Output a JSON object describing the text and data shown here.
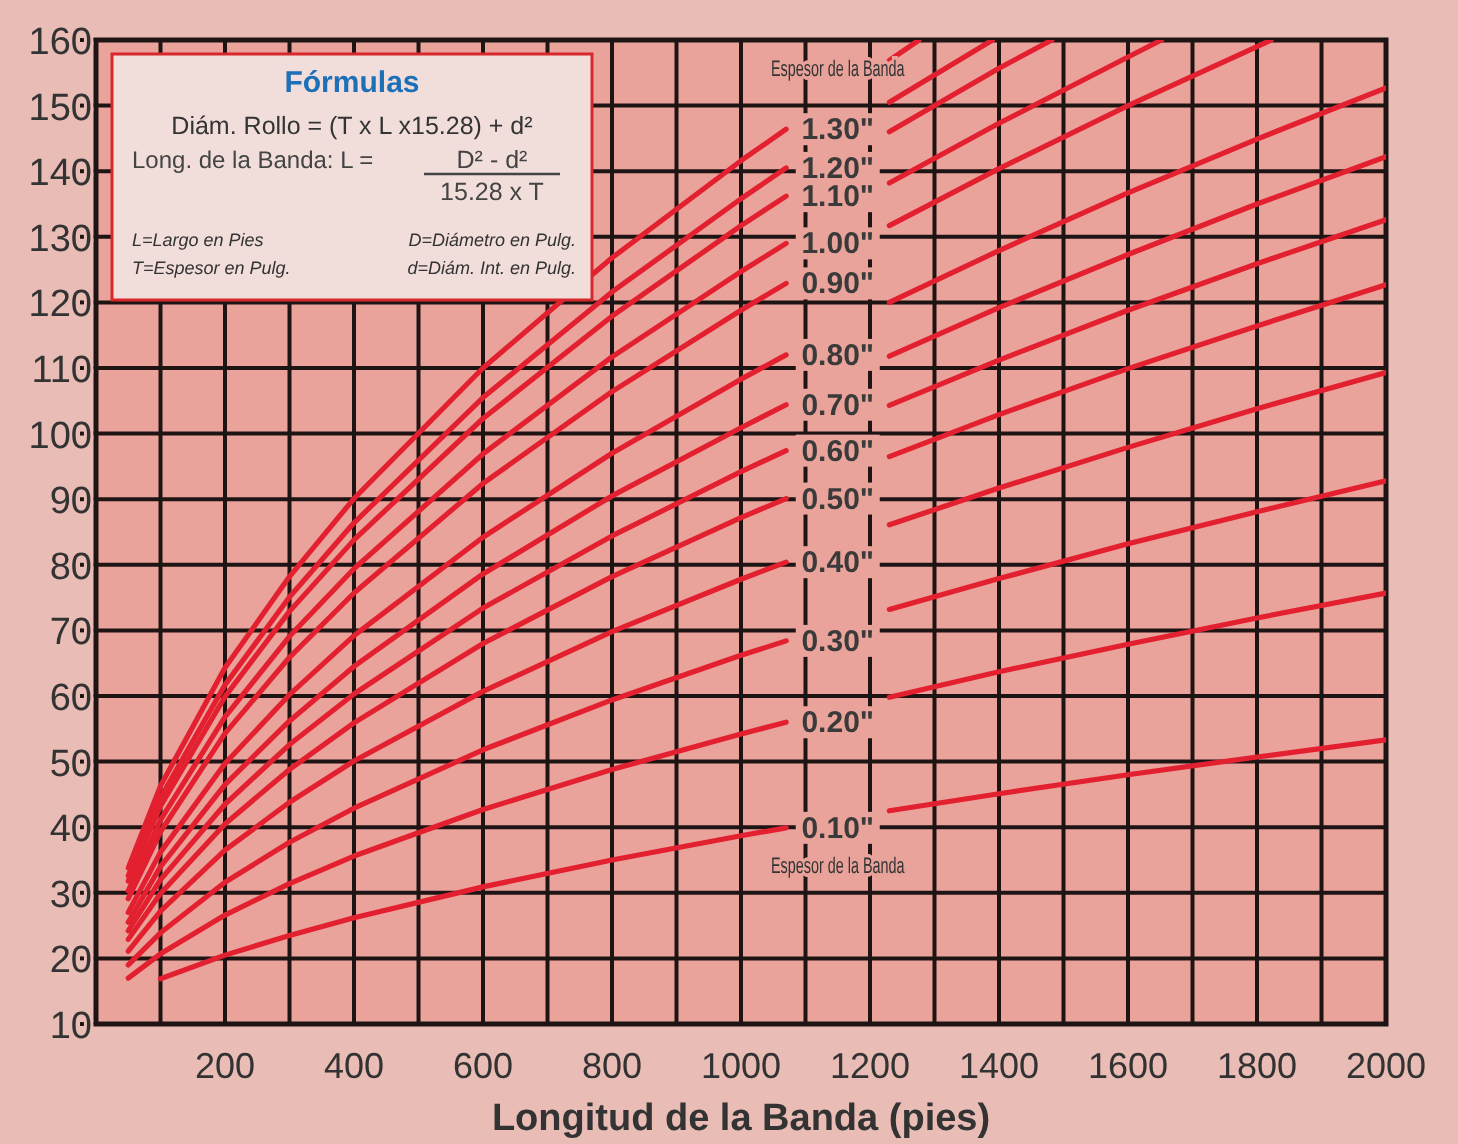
{
  "chart_data": {
    "type": "line",
    "xlabel": "Longitud de la Banda (pies)",
    "xlim": [
      0,
      2000
    ],
    "xticks": [
      {
        "value": 100,
        "label": null
      },
      200,
      {
        "value": 300,
        "label": null
      },
      400,
      {
        "value": 500,
        "label": null
      },
      600,
      {
        "value": 700,
        "label": null
      },
      800,
      {
        "value": 900,
        "label": null
      },
      1000,
      {
        "value": 1100,
        "label": null
      },
      1200,
      {
        "value": 1300,
        "label": null
      },
      1400,
      {
        "value": 1500,
        "label": null
      },
      1600,
      {
        "value": 1700,
        "label": null
      },
      1800,
      {
        "value": 1900,
        "label": null
      },
      2000
    ],
    "ylim": [
      10,
      160
    ],
    "yticks": [
      10,
      20,
      30,
      40,
      50,
      60,
      70,
      80,
      90,
      100,
      110,
      120,
      130,
      140,
      150,
      160
    ],
    "grid": true,
    "legend": false,
    "line_style": "solid",
    "marker": "none",
    "annotations": [
      "Fórmulas",
      "Diám. Rollo = (T x L x15.28) + d²",
      "Long. de la Banda: L =",
      "D² - d²",
      "15.28 x T",
      "L=Largo en Pies",
      "D=Diámetro en Pulg.",
      "T=Espesor en Pulg.",
      "d=Diám. Int. en Pulg.",
      "Espesor de la Banda",
      "Espesor de la Banda"
    ],
    "series": [
      {
        "name": "0.10\"",
        "color": "#e3202f",
        "x": [
          100,
          200,
          300,
          400,
          600,
          800,
          1000,
          1070,
          1150,
          1230,
          1400,
          1600,
          1800,
          2000
        ],
        "values": [
          16.9,
          20.5,
          23.5,
          26.2,
          30.9,
          35.0,
          38.7,
          39.9,
          null,
          42.5,
          45.1,
          48.0,
          50.7,
          53.3
        ]
      },
      {
        "name": "0.20\"",
        "color": "#e3202f",
        "x": [
          50,
          100,
          200,
          300,
          400,
          600,
          800,
          1000,
          1070,
          1150,
          1230,
          1400,
          1600,
          1800,
          2000
        ],
        "values": [
          17.0,
          20.7,
          26.6,
          31.4,
          35.6,
          42.7,
          48.8,
          54.2,
          56.0,
          null,
          59.8,
          63.7,
          67.9,
          71.9,
          75.7
        ]
      },
      {
        "name": "0.30\"",
        "color": "#e3202f",
        "x": [
          50,
          100,
          200,
          300,
          400,
          600,
          800,
          1000,
          1070,
          1150,
          1230,
          1400,
          1600,
          1800,
          2000
        ],
        "values": [
          19.0,
          23.9,
          31.6,
          37.7,
          42.9,
          51.8,
          59.4,
          66.2,
          68.4,
          null,
          73.2,
          77.9,
          83.2,
          88.1,
          92.8
        ]
      },
      {
        "name": "0.40\"",
        "color": "#e3202f",
        "x": [
          50,
          100,
          200,
          300,
          400,
          600,
          800,
          1000,
          1070,
          1150,
          1230,
          1400,
          1600,
          1800,
          2000
        ],
        "values": [
          21.1,
          27.2,
          36.5,
          43.8,
          50.1,
          60.7,
          69.8,
          77.8,
          80.4,
          null,
          86.1,
          91.7,
          97.9,
          103.8,
          109.3
        ]
      },
      {
        "name": "0.50\"",
        "color": "#e3202f",
        "x": [
          50,
          100,
          200,
          300,
          400,
          600,
          800,
          1000,
          1070,
          1150,
          1230,
          1400,
          1600,
          1800,
          2000
        ],
        "values": [
          22.9,
          29.9,
          40.5,
          48.8,
          55.9,
          68.0,
          78.2,
          87.2,
          90.1,
          null,
          96.5,
          102.9,
          109.9,
          116.4,
          122.7
        ]
      },
      {
        "name": "0.60\"",
        "color": "#e3202f",
        "x": [
          50,
          100,
          200,
          300,
          400,
          600,
          800,
          1000,
          1070,
          1150,
          1230,
          1400,
          1600,
          1800,
          2000
        ],
        "values": [
          24.2,
          32.0,
          43.5,
          52.6,
          60.3,
          73.4,
          84.4,
          94.2,
          97.4,
          null,
          104.3,
          111.2,
          118.8,
          125.9,
          132.6
        ]
      },
      {
        "name": "0.70\"",
        "color": "#e3202f",
        "x": [
          50,
          100,
          200,
          300,
          400,
          600,
          800,
          1000,
          1070,
          1150,
          1230,
          1400,
          1600,
          1800,
          2000
        ],
        "values": [
          25.5,
          34.0,
          46.5,
          56.2,
          64.5,
          78.6,
          90.5,
          100.9,
          104.4,
          null,
          111.8,
          119.2,
          127.3,
          135.0,
          142.2
        ]
      },
      {
        "name": "0.80\"",
        "color": "#e3202f",
        "x": [
          50,
          100,
          200,
          300,
          400,
          600,
          800,
          1000,
          1070,
          1150,
          1230,
          1400,
          1600,
          1800,
          2000
        ],
        "values": [
          27.0,
          36.2,
          49.7,
          60.2,
          69.2,
          84.2,
          97.0,
          108.3,
          112.0,
          null,
          120.0,
          127.9,
          136.7,
          144.9,
          152.7
        ]
      },
      {
        "name": "0.90\"",
        "color": "#e3202f",
        "x": [
          50,
          100,
          200,
          300,
          400,
          600,
          800,
          1000,
          1070,
          1150,
          1230,
          1400,
          1600,
          1800,
          1822
        ],
        "values": [
          29.1,
          39.3,
          54.3,
          65.9,
          75.7,
          92.4,
          106.4,
          118.8,
          122.9,
          null,
          131.7,
          140.4,
          150.0,
          159.0,
          160
        ]
      },
      {
        "name": "1.00\"",
        "color": "#e3202f",
        "x": [
          50,
          100,
          200,
          300,
          400,
          600,
          800,
          1000,
          1070,
          1150,
          1230,
          1400,
          1600,
          1652
        ],
        "values": [
          30.3,
          41.1,
          56.8,
          69.1,
          79.4,
          96.9,
          111.7,
          124.7,
          129.0,
          null,
          138.2,
          147.3,
          157.4,
          160
        ]
      },
      {
        "name": "1.10\"",
        "color": "#e3202f",
        "x": [
          50,
          100,
          200,
          300,
          400,
          600,
          800,
          1000,
          1070,
          1150,
          1230,
          1400,
          1482
        ],
        "values": [
          31.8,
          43.2,
          59.9,
          72.9,
          83.8,
          102.3,
          117.9,
          131.7,
          136.2,
          null,
          146.0,
          155.7,
          160
        ]
      },
      {
        "name": "1.20\"",
        "color": "#e3202f",
        "x": [
          50,
          100,
          200,
          300,
          400,
          600,
          800,
          1000,
          1070,
          1150,
          1230,
          1390
        ],
        "values": [
          32.6,
          44.5,
          61.7,
          75.1,
          86.4,
          105.5,
          121.6,
          135.8,
          140.5,
          null,
          150.5,
          160
        ]
      },
      {
        "name": "1.30\"",
        "color": "#e3202f",
        "x": [
          50,
          100,
          200,
          300,
          400,
          600,
          800,
          1000,
          1070,
          1150,
          1230,
          1276
        ],
        "values": [
          33.8,
          46.3,
          64.3,
          78.2,
          90.1,
          110.0,
          126.8,
          141.6,
          146.4,
          null,
          156.9,
          160
        ]
      }
    ]
  }
}
